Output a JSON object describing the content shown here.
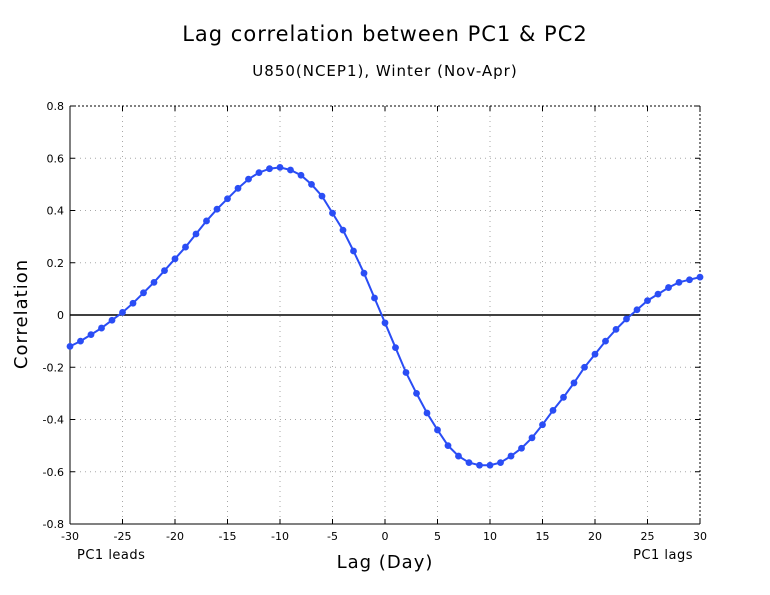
{
  "chart_data": {
    "type": "line",
    "title": "Lag correlation between PC1 & PC2",
    "subtitle": "U850(NCEP1), Winter (Nov-Apr)",
    "xlabel": "Lag (Day)",
    "ylabel": "Correlation",
    "xlim": [
      -30,
      30
    ],
    "ylim": [
      -0.8,
      0.8
    ],
    "xticks": [
      -30,
      -25,
      -20,
      -15,
      -10,
      -5,
      0,
      5,
      10,
      15,
      20,
      25,
      30
    ],
    "xtick_labels": [
      "-30",
      "-25",
      "-20",
      "-15",
      "-10",
      "-5",
      "0",
      "5",
      "10",
      "15",
      "20",
      "25",
      "30"
    ],
    "yticks": [
      -0.8,
      -0.6,
      -0.4,
      -0.2,
      0,
      0.2,
      0.4,
      0.6,
      0.8
    ],
    "ytick_labels": [
      "-0.8",
      "-0.6",
      "-0.4",
      "-0.2",
      "0",
      "0.2",
      "0.4",
      "0.6",
      "0.8"
    ],
    "grid": true,
    "annotations": {
      "left": "PC1 leads",
      "right": "PC1 lags"
    },
    "series": [
      {
        "name": "lag correlation",
        "color": "#2a4df5",
        "x": [
          -30,
          -29,
          -28,
          -27,
          -26,
          -25,
          -24,
          -23,
          -22,
          -21,
          -20,
          -19,
          -18,
          -17,
          -16,
          -15,
          -14,
          -13,
          -12,
          -11,
          -10,
          -9,
          -8,
          -7,
          -6,
          -5,
          -4,
          -3,
          -2,
          -1,
          0,
          1,
          2,
          3,
          4,
          5,
          6,
          7,
          8,
          9,
          10,
          11,
          12,
          13,
          14,
          15,
          16,
          17,
          18,
          19,
          20,
          21,
          22,
          23,
          24,
          25,
          26,
          27,
          28,
          29,
          30
        ],
        "values": [
          -0.12,
          -0.1,
          -0.075,
          -0.05,
          -0.02,
          0.01,
          0.045,
          0.085,
          0.125,
          0.17,
          0.215,
          0.26,
          0.31,
          0.36,
          0.405,
          0.445,
          0.485,
          0.52,
          0.545,
          0.56,
          0.565,
          0.555,
          0.535,
          0.5,
          0.455,
          0.39,
          0.325,
          0.245,
          0.16,
          0.065,
          -0.03,
          -0.125,
          -0.22,
          -0.3,
          -0.375,
          -0.44,
          -0.5,
          -0.54,
          -0.565,
          -0.575,
          -0.575,
          -0.565,
          -0.54,
          -0.51,
          -0.47,
          -0.42,
          -0.365,
          -0.315,
          -0.26,
          -0.2,
          -0.15,
          -0.1,
          -0.055,
          -0.015,
          0.02,
          0.055,
          0.08,
          0.105,
          0.125,
          0.135,
          0.145
        ]
      }
    ]
  }
}
